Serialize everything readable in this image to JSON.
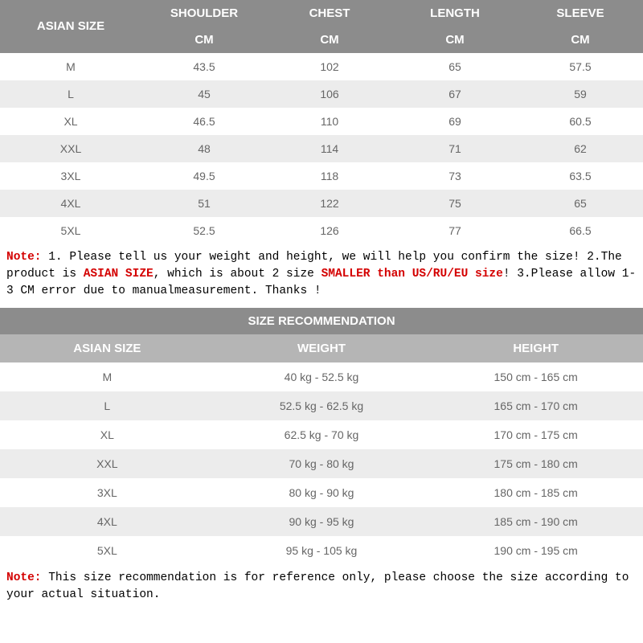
{
  "sizeTable": {
    "headerRow1Col1": "ASIAN SIZE",
    "columns": [
      {
        "top": "SHOULDER",
        "unit": "CM"
      },
      {
        "top": "CHEST",
        "unit": "CM"
      },
      {
        "top": "LENGTH",
        "unit": "CM"
      },
      {
        "top": "SLEEVE",
        "unit": "CM"
      }
    ],
    "rows": [
      {
        "size": "M",
        "vals": [
          "43.5",
          "102",
          "65",
          "57.5"
        ]
      },
      {
        "size": "L",
        "vals": [
          "45",
          "106",
          "67",
          "59"
        ]
      },
      {
        "size": "XL",
        "vals": [
          "46.5",
          "110",
          "69",
          "60.5"
        ]
      },
      {
        "size": "XXL",
        "vals": [
          "48",
          "114",
          "71",
          "62"
        ]
      },
      {
        "size": "3XL",
        "vals": [
          "49.5",
          "118",
          "73",
          "63.5"
        ]
      },
      {
        "size": "4XL",
        "vals": [
          "51",
          "122",
          "75",
          "65"
        ]
      },
      {
        "size": "5XL",
        "vals": [
          "52.5",
          "126",
          "77",
          "66.5"
        ]
      }
    ]
  },
  "note1": {
    "labelRed": "Note:",
    "t1": " 1. Please tell us your weight and height, we will help you confirm the size!  2.The product is ",
    "asianRed": "ASIAN SIZE",
    "t2": ", which is about 2 size ",
    "smallerRed": "SMALLER than US/RU/EU size",
    "t3": "! 3.Please allow 1-3 CM error due to manualmeasurement.  Thanks !"
  },
  "recTable": {
    "title": "SIZE RECOMMENDATION",
    "columns": [
      "ASIAN SIZE",
      "WEIGHT",
      "HEIGHT"
    ],
    "rows": [
      {
        "size": "M",
        "weight": "40 kg - 52.5 kg",
        "height": "150 cm - 165 cm"
      },
      {
        "size": "L",
        "weight": "52.5 kg - 62.5 kg",
        "height": "165 cm - 170 cm"
      },
      {
        "size": "XL",
        "weight": "62.5 kg - 70 kg",
        "height": "170 cm - 175 cm"
      },
      {
        "size": "XXL",
        "weight": "70 kg - 80 kg",
        "height": "175 cm - 180 cm"
      },
      {
        "size": "3XL",
        "weight": "80 kg - 90 kg",
        "height": "180 cm - 185 cm"
      },
      {
        "size": "4XL",
        "weight": "90 kg - 95 kg",
        "height": "185 cm - 190 cm"
      },
      {
        "size": "5XL",
        "weight": "95 kg - 105 kg",
        "height": "190 cm - 195 cm"
      }
    ]
  },
  "note2": {
    "labelRed": "Note:",
    "text": " This size recommendation is for reference only, please choose the size according to your actual situation."
  },
  "colors": {
    "headerDark": "#8c8c8c",
    "headerLight": "#b5b5b5",
    "rowEven": "#ececec",
    "rowOdd": "#ffffff",
    "textGray": "#666666",
    "noteRed": "#d40000"
  }
}
